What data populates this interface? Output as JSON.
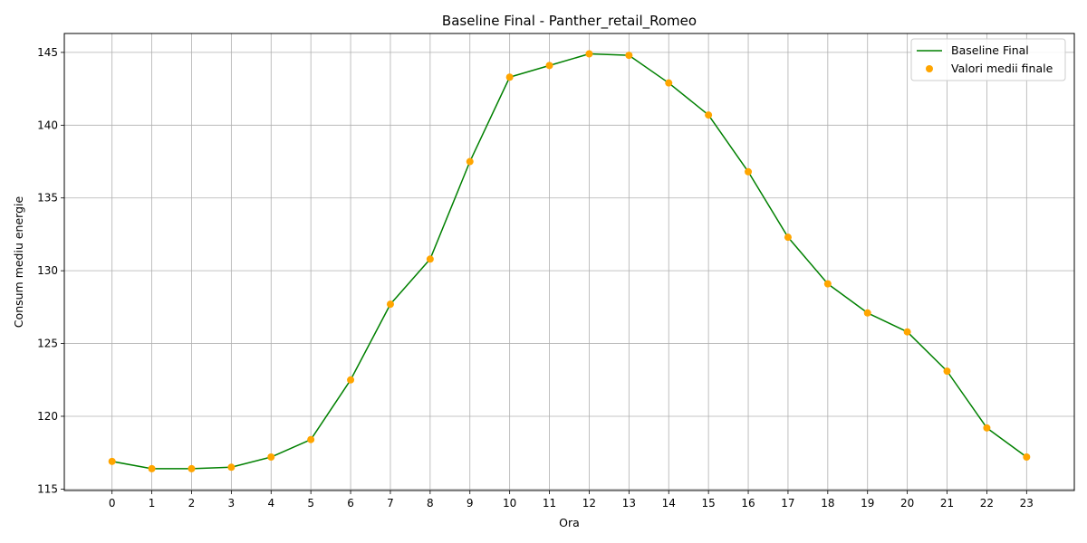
{
  "chart_data": {
    "type": "line",
    "title": "Baseline Final - Panther_retail_Romeo",
    "xlabel": "Ora",
    "ylabel": "Consum mediu energie",
    "x": [
      0,
      1,
      2,
      3,
      4,
      5,
      6,
      7,
      8,
      9,
      10,
      11,
      12,
      13,
      14,
      15,
      16,
      17,
      18,
      19,
      20,
      21,
      22,
      23
    ],
    "x_tick_labels": [
      "0",
      "1",
      "2",
      "3",
      "4",
      "5",
      "6",
      "7",
      "8",
      "9",
      "10",
      "11",
      "12",
      "13",
      "14",
      "15",
      "16",
      "17",
      "18",
      "19",
      "20",
      "21",
      "22",
      "23"
    ],
    "y_ticks": [
      115,
      120,
      125,
      130,
      135,
      140,
      145
    ],
    "y_tick_labels": [
      "115",
      "120",
      "125",
      "130",
      "135",
      "140",
      "145"
    ],
    "xlim": [
      -1.2,
      24.2
    ],
    "ylim": [
      114.9,
      146.3
    ],
    "grid": true,
    "legend_position": "top-right",
    "series": [
      {
        "name": "Baseline Final",
        "kind": "line",
        "color": "#008000",
        "values": [
          116.9,
          116.4,
          116.4,
          116.5,
          117.2,
          118.4,
          122.5,
          127.7,
          130.8,
          137.5,
          143.3,
          144.1,
          144.9,
          144.8,
          142.9,
          140.7,
          136.8,
          132.3,
          129.1,
          127.1,
          125.8,
          123.1,
          119.2,
          117.2
        ]
      },
      {
        "name": "Valori medii finale",
        "kind": "scatter",
        "color": "#FFA500",
        "values": [
          116.9,
          116.4,
          116.4,
          116.5,
          117.2,
          118.4,
          122.5,
          127.7,
          130.8,
          137.5,
          143.3,
          144.1,
          144.9,
          144.8,
          142.9,
          140.7,
          136.8,
          132.3,
          129.1,
          127.1,
          125.8,
          123.1,
          119.2,
          117.2
        ]
      }
    ]
  }
}
